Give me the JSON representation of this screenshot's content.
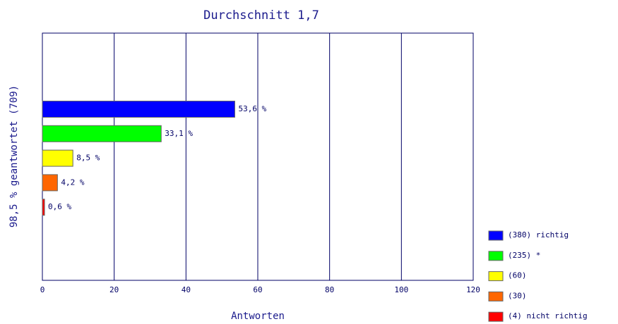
{
  "chart_data": {
    "type": "bar",
    "orientation": "horizontal",
    "title": "Durchschnitt 1,7",
    "xlabel": "Antworten",
    "ylabel": "98,5 % geantwortet (709)",
    "series": [
      {
        "name": "(380) richtig",
        "color": "#0000ff",
        "values": [
          53.6
        ],
        "value_labels": [
          "53,6 %"
        ]
      },
      {
        "name": "(235) *",
        "color": "#00ff00",
        "values": [
          33.1
        ],
        "value_labels": [
          "33,1 %"
        ]
      },
      {
        "name": "(60)",
        "color": "#ffff00",
        "values": [
          8.5
        ],
        "value_labels": [
          "8,5 %"
        ]
      },
      {
        "name": "(30)",
        "color": "#ff6600",
        "values": [
          4.2
        ],
        "value_labels": [
          "4,2 %"
        ]
      },
      {
        "name": "(4) nicht richtig",
        "color": "#ff0000",
        "values": [
          0.6
        ],
        "value_labels": [
          "0,6 %"
        ]
      }
    ],
    "xlim": [
      0,
      120
    ],
    "xticks": [
      0,
      20,
      40,
      60,
      80,
      100,
      120
    ],
    "grid": true
  }
}
